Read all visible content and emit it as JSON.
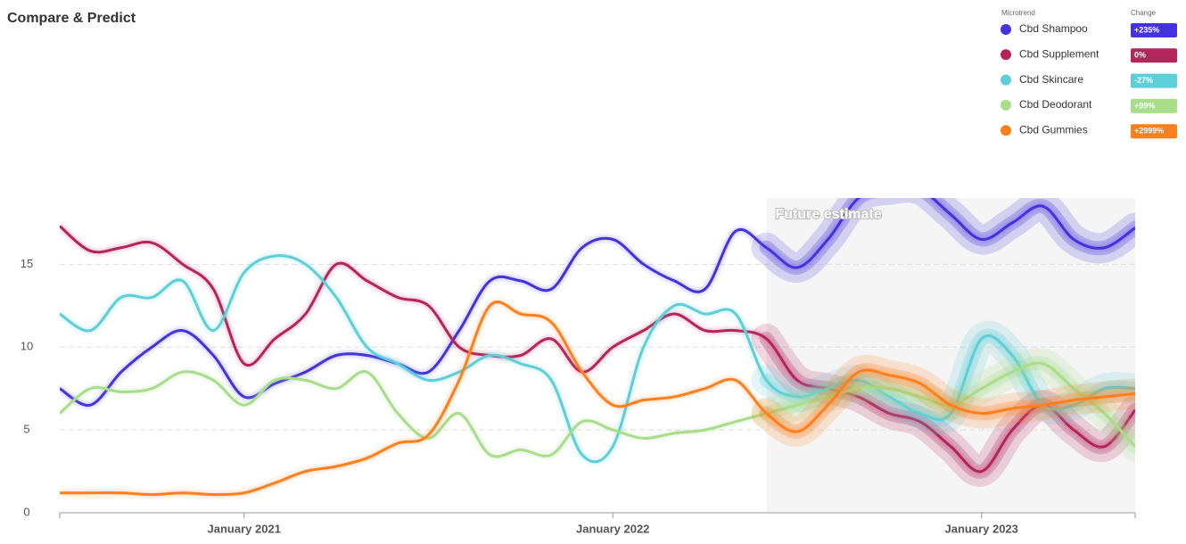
{
  "chart_data": {
    "type": "line",
    "title": "Compare & Predict",
    "legend_headers": {
      "name": "Microtrend",
      "change": "Change"
    },
    "forecast": {
      "label": "Future estimate",
      "start_index": 23
    },
    "categories": [
      null,
      null,
      null,
      null,
      null,
      null,
      "January 2021",
      null,
      null,
      null,
      null,
      null,
      null,
      null,
      null,
      null,
      null,
      null,
      "January 2022",
      null,
      null,
      null,
      null,
      null,
      null,
      null,
      null,
      null,
      null,
      null,
      "January 2023",
      null,
      null,
      null,
      null,
      null
    ],
    "ylim": [
      0,
      19
    ],
    "yticks": [
      0,
      5,
      10,
      15
    ],
    "grid": true,
    "series": [
      {
        "name": "Cbd Shampoo",
        "color": "#4433dd",
        "change": "+235%",
        "values": [
          7.5,
          6.5,
          8.5,
          10,
          11,
          9.5,
          7,
          7.8,
          8.5,
          9.5,
          9.5,
          9,
          8.5,
          11,
          14,
          14,
          13.5,
          16,
          16.5,
          15,
          14,
          13.5,
          17,
          16,
          14.8,
          16.5,
          19,
          19.5,
          19.5,
          18,
          16.5,
          17.5,
          18.5,
          16.5,
          16,
          17.2
        ]
      },
      {
        "name": "Cbd Supplement",
        "color": "#b5245a",
        "change": "0%",
        "values": [
          17.3,
          15.8,
          16,
          16.3,
          15,
          13.5,
          9,
          10.5,
          12,
          15,
          14,
          13,
          12.5,
          10,
          9.5,
          9.5,
          10.5,
          8.5,
          10,
          11,
          12,
          11,
          11,
          10.5,
          8,
          7.5,
          7,
          6,
          5.5,
          4,
          2.5,
          5,
          6.5,
          5,
          4,
          6.2
        ]
      },
      {
        "name": "Cbd Skincare",
        "color": "#5ccfd9",
        "change": "-27%",
        "values": [
          12,
          11,
          13,
          13,
          14,
          11,
          14.5,
          15.5,
          15,
          13,
          10,
          9,
          8,
          8.5,
          9.5,
          9,
          8,
          3.5,
          4,
          10,
          12.5,
          12,
          12,
          8,
          7,
          7.5,
          8,
          7,
          6,
          6,
          10.5,
          9.5,
          6.5,
          6.5,
          7.5,
          7.5
        ]
      },
      {
        "name": "Cbd Deodorant",
        "color": "#a8dd8a",
        "change": "+99%",
        "values": [
          6,
          7.5,
          7.3,
          7.5,
          8.5,
          8,
          6.5,
          8,
          8,
          7.5,
          8.5,
          6,
          4.5,
          6,
          3.5,
          3.8,
          3.5,
          5.5,
          5,
          4.5,
          4.8,
          5,
          5.5,
          6,
          6.5,
          7,
          7.5,
          7.5,
          7,
          6.5,
          7.5,
          8.5,
          9,
          7.5,
          6,
          4
        ]
      },
      {
        "name": "Cbd Gummies",
        "color": "#ff7f1e",
        "change": "+2999%",
        "values": [
          1.2,
          1.2,
          1.2,
          1.1,
          1.2,
          1.1,
          1.2,
          1.8,
          2.5,
          2.8,
          3.3,
          4.2,
          4.7,
          8,
          12.5,
          12,
          11.5,
          8.5,
          6.5,
          6.8,
          7,
          7.5,
          8,
          6,
          4.9,
          6.5,
          8.5,
          8.3,
          7.8,
          6.5,
          6,
          6.3,
          6.5,
          6.8,
          7,
          7.2
        ]
      }
    ]
  }
}
